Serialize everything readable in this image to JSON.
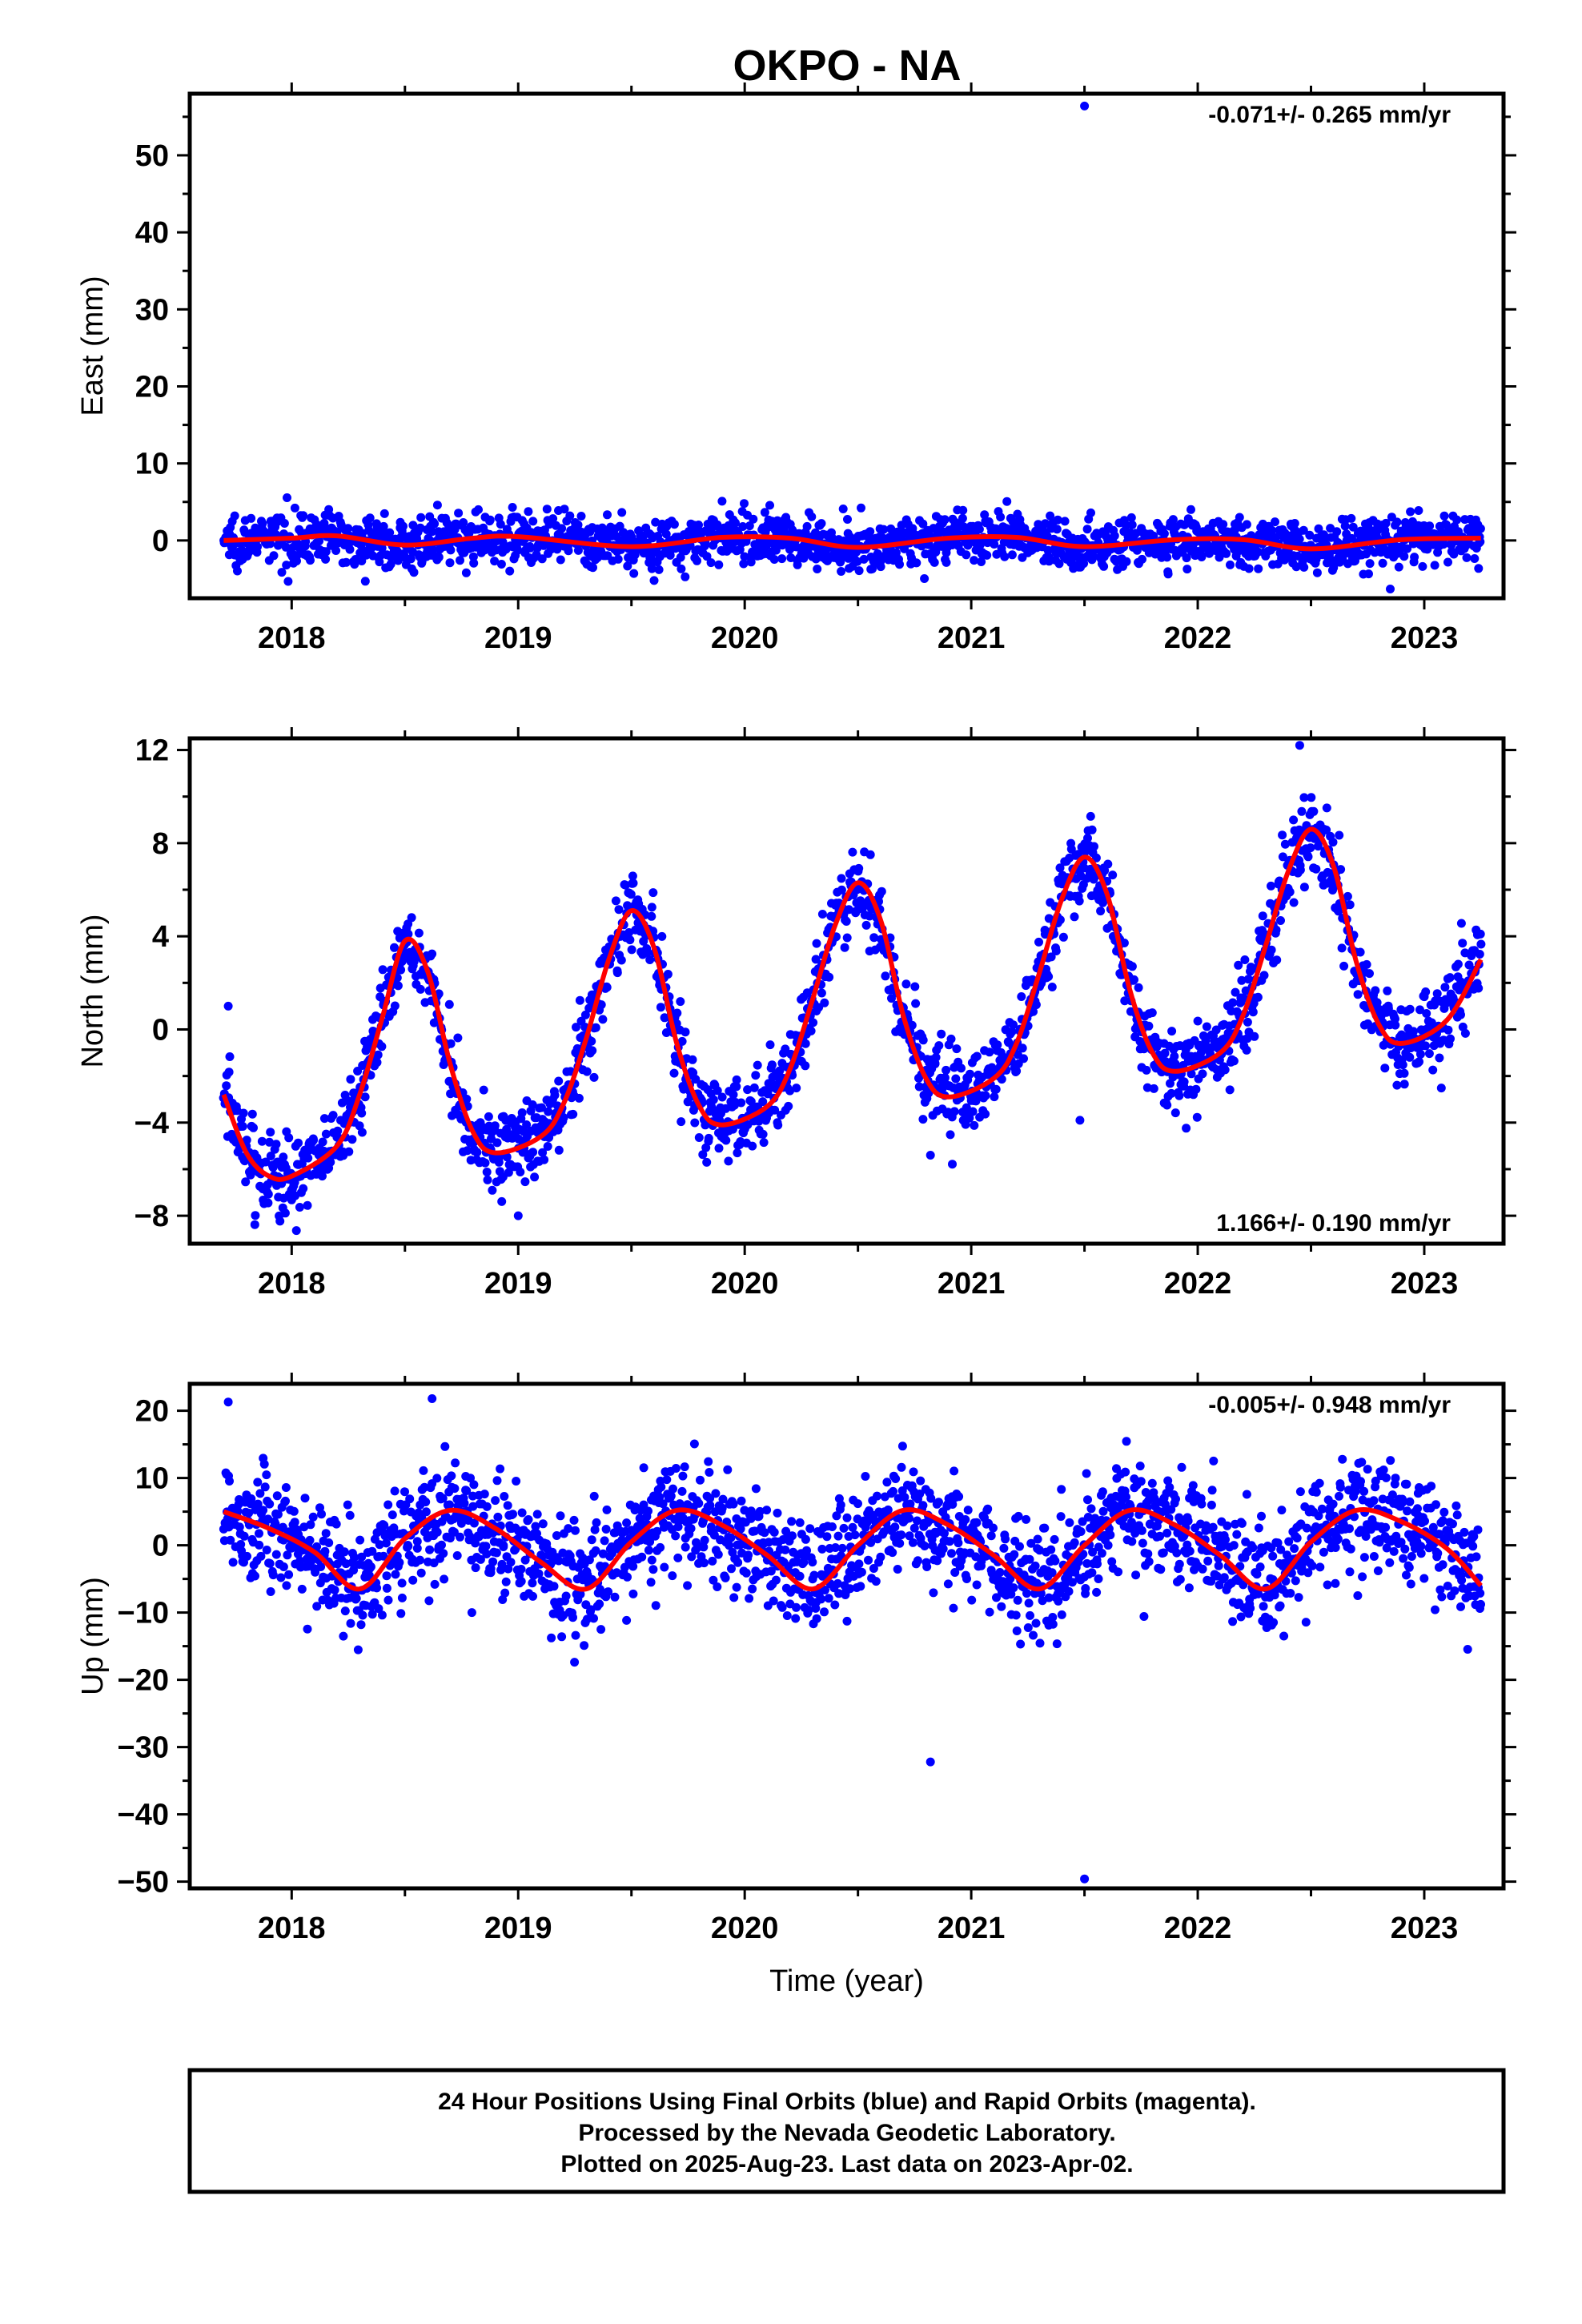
{
  "title": "OKPO - NA",
  "colors": {
    "points": "#0000ff",
    "fit": "#ff0000",
    "frame": "#000000"
  },
  "footer": {
    "line1": "24 Hour Positions Using Final Orbits (blue) and Rapid Orbits (magenta).",
    "line2": "Processed by the Nevada Geodetic Laboratory.",
    "line3": "Plotted on 2025-Aug-23. Last data on 2023-Apr-02."
  },
  "chart_data": [
    {
      "type": "scatter",
      "ylabel": "East (mm)",
      "xlabel": "",
      "rate": "-0.071+/- 0.265 mm/yr",
      "rate_position": "top-right",
      "xlim": [
        2017.55,
        2023.35
      ],
      "ylim": [
        -7.5,
        58
      ],
      "xticks": [
        2018,
        2019,
        2020,
        2021,
        2022,
        2023
      ],
      "yticks": [
        0,
        10,
        20,
        30,
        40,
        50
      ],
      "model": {
        "offset": 0.0,
        "trend": -0.071,
        "amp_cos": 0.5,
        "amp_sin": -0.4,
        "scatter": 1.6,
        "n": 1900,
        "x_start": 2017.7,
        "x_end": 2023.25
      },
      "outliers": [
        {
          "x": 2021.5,
          "y": 56.4
        },
        {
          "x": 2019.6,
          "y": -5.2
        },
        {
          "x": 2022.85,
          "y": -6.3
        }
      ],
      "fit_points": [
        {
          "x": 2017.7,
          "y": 0.0
        },
        {
          "x": 2018.0,
          "y": 0.3
        },
        {
          "x": 2018.2,
          "y": 0.6
        },
        {
          "x": 2018.5,
          "y": -0.6
        },
        {
          "x": 2018.8,
          "y": 0.3
        },
        {
          "x": 2019.0,
          "y": 0.5
        },
        {
          "x": 2019.5,
          "y": -0.8
        },
        {
          "x": 2019.9,
          "y": 0.4
        },
        {
          "x": 2020.2,
          "y": 0.3
        },
        {
          "x": 2020.5,
          "y": -0.9
        },
        {
          "x": 2020.9,
          "y": 0.3
        },
        {
          "x": 2021.2,
          "y": 0.4
        },
        {
          "x": 2021.5,
          "y": -0.8
        },
        {
          "x": 2021.9,
          "y": 0.1
        },
        {
          "x": 2022.2,
          "y": 0.1
        },
        {
          "x": 2022.5,
          "y": -1.1
        },
        {
          "x": 2022.9,
          "y": 0.1
        },
        {
          "x": 2023.25,
          "y": 0.3
        }
      ]
    },
    {
      "type": "scatter",
      "ylabel": "North (mm)",
      "xlabel": "",
      "rate": "1.166+/- 0.190 mm/yr",
      "rate_position": "bottom-right",
      "xlim": [
        2017.55,
        2023.35
      ],
      "ylim": [
        -9.2,
        12.5
      ],
      "xticks": [
        2018,
        2019,
        2020,
        2021,
        2022,
        2023
      ],
      "yticks": [
        -8,
        -4,
        0,
        4,
        8,
        12
      ],
      "model": {
        "offset": -4.1,
        "trend": 1.166,
        "amp_cos": -4.6,
        "amp_sin": -1.5,
        "scatter": 0.9,
        "n": 1900,
        "x_start": 2017.7,
        "x_end": 2023.25
      },
      "outliers": [
        {
          "x": 2017.72,
          "y": 1.0
        },
        {
          "x": 2021.48,
          "y": -3.9
        },
        {
          "x": 2020.82,
          "y": -5.4
        },
        {
          "x": 2022.45,
          "y": 12.2
        },
        {
          "x": 2019.0,
          "y": -8.0
        }
      ],
      "fit_points": [
        {
          "x": 2017.7,
          "y": -2.8
        },
        {
          "x": 2017.8,
          "y": -5.3
        },
        {
          "x": 2017.9,
          "y": -6.3
        },
        {
          "x": 2018.0,
          "y": -6.3
        },
        {
          "x": 2018.2,
          "y": -5.0
        },
        {
          "x": 2018.3,
          "y": -2.8
        },
        {
          "x": 2018.4,
          "y": 0.5
        },
        {
          "x": 2018.5,
          "y": 3.8
        },
        {
          "x": 2018.6,
          "y": 2.5
        },
        {
          "x": 2018.7,
          "y": -1.5
        },
        {
          "x": 2018.8,
          "y": -4.4
        },
        {
          "x": 2018.9,
          "y": -5.3
        },
        {
          "x": 2019.1,
          "y": -4.6
        },
        {
          "x": 2019.2,
          "y": -3.2
        },
        {
          "x": 2019.3,
          "y": -0.4
        },
        {
          "x": 2019.4,
          "y": 3.0
        },
        {
          "x": 2019.5,
          "y": 5.1
        },
        {
          "x": 2019.6,
          "y": 3.5
        },
        {
          "x": 2019.7,
          "y": -0.6
        },
        {
          "x": 2019.8,
          "y": -3.3
        },
        {
          "x": 2019.9,
          "y": -4.1
        },
        {
          "x": 2020.1,
          "y": -3.3
        },
        {
          "x": 2020.2,
          "y": -1.7
        },
        {
          "x": 2020.3,
          "y": 1.3
        },
        {
          "x": 2020.4,
          "y": 4.5
        },
        {
          "x": 2020.5,
          "y": 6.3
        },
        {
          "x": 2020.6,
          "y": 4.7
        },
        {
          "x": 2020.7,
          "y": 0.6
        },
        {
          "x": 2020.8,
          "y": -2.1
        },
        {
          "x": 2020.9,
          "y": -2.9
        },
        {
          "x": 2021.1,
          "y": -2.1
        },
        {
          "x": 2021.2,
          "y": -0.6
        },
        {
          "x": 2021.3,
          "y": 2.4
        },
        {
          "x": 2021.4,
          "y": 5.6
        },
        {
          "x": 2021.5,
          "y": 7.4
        },
        {
          "x": 2021.6,
          "y": 5.8
        },
        {
          "x": 2021.7,
          "y": 1.7
        },
        {
          "x": 2021.8,
          "y": -1.0
        },
        {
          "x": 2021.9,
          "y": -1.8
        },
        {
          "x": 2022.1,
          "y": -1.0
        },
        {
          "x": 2022.2,
          "y": 0.6
        },
        {
          "x": 2022.3,
          "y": 3.6
        },
        {
          "x": 2022.4,
          "y": 6.8
        },
        {
          "x": 2022.5,
          "y": 8.6
        },
        {
          "x": 2022.6,
          "y": 7.0
        },
        {
          "x": 2022.7,
          "y": 2.9
        },
        {
          "x": 2022.8,
          "y": 0.2
        },
        {
          "x": 2022.9,
          "y": -0.6
        },
        {
          "x": 2023.1,
          "y": 0.4
        },
        {
          "x": 2023.25,
          "y": 3.0
        }
      ]
    },
    {
      "type": "scatter",
      "ylabel": "Up (mm)",
      "xlabel": "Time (year)",
      "rate": "-0.005+/- 0.948 mm/yr",
      "rate_position": "top-right",
      "xlim": [
        2017.55,
        2023.35
      ],
      "ylim": [
        -51,
        24
      ],
      "xticks": [
        2018,
        2019,
        2020,
        2021,
        2022,
        2023
      ],
      "yticks": [
        -50,
        -40,
        -30,
        -20,
        -10,
        0,
        10,
        20
      ],
      "model": {
        "offset": -0.5,
        "trend": -0.005,
        "amp_cos": -3.5,
        "amp_sin": -4.5,
        "scatter": 4.2,
        "n": 1900,
        "x_start": 2017.7,
        "x_end": 2023.25
      },
      "outliers": [
        {
          "x": 2021.5,
          "y": -49.6
        },
        {
          "x": 2020.82,
          "y": -32.2
        },
        {
          "x": 2017.72,
          "y": 21.3
        },
        {
          "x": 2018.62,
          "y": 21.8
        }
      ],
      "fit_points": [
        {
          "x": 2017.7,
          "y": 5.0
        },
        {
          "x": 2017.9,
          "y": 2.5
        },
        {
          "x": 2018.1,
          "y": -1.0
        },
        {
          "x": 2018.3,
          "y": -6.5
        },
        {
          "x": 2018.5,
          "y": 1.0
        },
        {
          "x": 2018.7,
          "y": 5.2
        },
        {
          "x": 2018.9,
          "y": 2.5
        },
        {
          "x": 2019.1,
          "y": -2.5
        },
        {
          "x": 2019.3,
          "y": -6.5
        },
        {
          "x": 2019.5,
          "y": 0.5
        },
        {
          "x": 2019.7,
          "y": 5.2
        },
        {
          "x": 2019.9,
          "y": 3.0
        },
        {
          "x": 2020.1,
          "y": -1.5
        },
        {
          "x": 2020.3,
          "y": -6.5
        },
        {
          "x": 2020.5,
          "y": 0.0
        },
        {
          "x": 2020.7,
          "y": 5.2
        },
        {
          "x": 2020.9,
          "y": 3.0
        },
        {
          "x": 2021.1,
          "y": -1.5
        },
        {
          "x": 2021.3,
          "y": -6.5
        },
        {
          "x": 2021.5,
          "y": 0.0
        },
        {
          "x": 2021.7,
          "y": 5.2
        },
        {
          "x": 2021.9,
          "y": 3.0
        },
        {
          "x": 2022.1,
          "y": -1.5
        },
        {
          "x": 2022.3,
          "y": -6.5
        },
        {
          "x": 2022.5,
          "y": 0.5
        },
        {
          "x": 2022.7,
          "y": 5.2
        },
        {
          "x": 2022.9,
          "y": 3.5
        },
        {
          "x": 2023.1,
          "y": -0.5
        },
        {
          "x": 2023.25,
          "y": -6.0
        }
      ]
    }
  ]
}
